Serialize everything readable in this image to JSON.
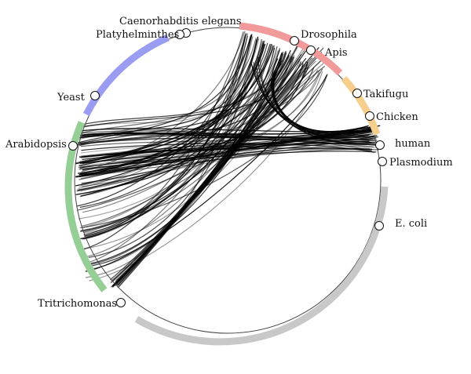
{
  "diagram": {
    "groups": [
      {
        "name": "blue-group",
        "color": "#9a9cf2"
      },
      {
        "name": "red-group",
        "color": "#f29a9a"
      },
      {
        "name": "orange-group",
        "color": "#f7cf8c"
      },
      {
        "name": "grey-group",
        "color": "#c8c8c8"
      },
      {
        "name": "green-group",
        "color": "#96cf96"
      }
    ],
    "nodes": [
      {
        "id": "caenorhabditis",
        "label": "Caenorhabditis elegans"
      },
      {
        "id": "platyhelminthes",
        "label": "Platyhelminthes"
      },
      {
        "id": "drosophila",
        "label": "Drosophila"
      },
      {
        "id": "apis",
        "label": "Apis"
      },
      {
        "id": "takifugu",
        "label": "Takifugu"
      },
      {
        "id": "chicken",
        "label": "Chicken"
      },
      {
        "id": "human",
        "label": "human"
      },
      {
        "id": "plasmodium",
        "label": "Plasmodium"
      },
      {
        "id": "ecoli",
        "label": "E. coli"
      },
      {
        "id": "yeast",
        "label": "Yeast"
      },
      {
        "id": "arabidopsis",
        "label": "Arabidopsis"
      },
      {
        "id": "tritrichomonas",
        "label": "Tritrichomonas"
      }
    ]
  }
}
